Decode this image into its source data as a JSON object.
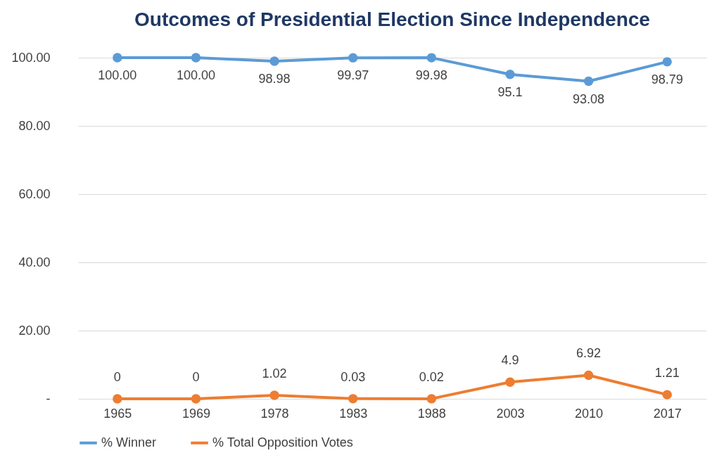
{
  "chart_data": {
    "type": "line",
    "title": "Outcomes of Presidential Election Since Independence",
    "categories": [
      "1965",
      "1969",
      "1978",
      "1983",
      "1988",
      "2003",
      "2010",
      "2017"
    ],
    "series": [
      {
        "name": "% Winner",
        "color": "#5b9bd5",
        "values": [
          100,
          100,
          98.98,
          99.97,
          99.98,
          95.1,
          93.08,
          98.79
        ],
        "value_labels": [
          "100.00",
          "100.00",
          "98.98",
          "99.97",
          "99.98",
          "95.1",
          "93.08",
          "98.79"
        ]
      },
      {
        "name": "% Total Opposition Votes",
        "color": "#ed7d31",
        "values": [
          0,
          0,
          1.02,
          0.03,
          0.02,
          4.9,
          6.92,
          1.21
        ],
        "value_labels": [
          "0",
          "0",
          "1.02",
          "0.03",
          "0.02",
          "4.9",
          "6.92",
          "1.21"
        ]
      }
    ],
    "ylim": [
      0,
      100
    ],
    "yticks": [
      {
        "value": 0,
        "label": "-"
      },
      {
        "value": 20,
        "label": "20.00"
      },
      {
        "value": 40,
        "label": "40.00"
      },
      {
        "value": 60,
        "label": "60.00"
      },
      {
        "value": 80,
        "label": "80.00"
      },
      {
        "value": 100,
        "label": "100.00"
      }
    ],
    "grid": "y",
    "legend": "bottom",
    "marker": "circle",
    "line_style": "solid"
  }
}
